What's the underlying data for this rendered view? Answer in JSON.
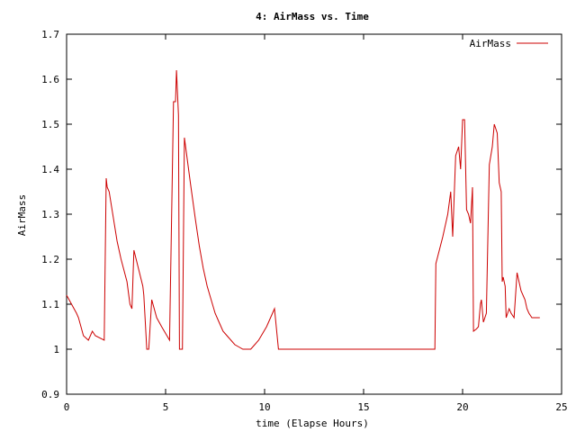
{
  "chart_data": {
    "type": "line",
    "title": "4: AirMass vs. Time",
    "xlabel": "time (Elapse Hours)",
    "ylabel": "AirMass",
    "xlim": [
      0,
      25
    ],
    "ylim": [
      0.9,
      1.7
    ],
    "xticks": [
      0,
      5,
      10,
      15,
      20,
      25
    ],
    "xtick_labels": [
      "0",
      "5",
      "10",
      "15",
      "20",
      "25"
    ],
    "yticks": [
      0.9,
      1.0,
      1.1,
      1.2,
      1.3,
      1.4,
      1.5,
      1.6,
      1.7
    ],
    "ytick_labels": [
      "0.9",
      "1",
      "1.1",
      "1.2",
      "1.3",
      "1.4",
      "1.5",
      "1.6",
      "1.7"
    ],
    "grid": false,
    "legend_position": "top-right",
    "line_color": "#cc0000",
    "series": [
      {
        "name": "AirMass",
        "color": "#cc0000",
        "x": [
          0,
          0.5,
          0.6,
          0.85,
          1.1,
          1.3,
          1.45,
          1.9,
          2.0,
          2.05,
          2.15,
          2.55,
          2.75,
          3.05,
          3.2,
          3.3,
          3.4,
          3.85,
          3.9,
          4.05,
          4.15,
          4.3,
          4.55,
          4.8,
          5.2,
          5.4,
          5.5,
          5.55,
          5.65,
          5.7,
          5.85,
          5.95,
          6.1,
          6.25,
          6.5,
          6.7,
          6.9,
          7.1,
          7.3,
          7.5,
          7.7,
          7.9,
          8.1,
          8.3,
          8.5,
          8.7,
          8.9,
          9.1,
          9.3,
          9.5,
          9.7,
          9.9,
          10.1,
          10.3,
          10.5,
          10.7,
          10.9,
          11.05,
          11.2,
          12.5,
          14,
          15.5,
          17,
          18.6,
          18.65,
          19.0,
          19.25,
          19.4,
          19.5,
          19.65,
          19.8,
          19.9,
          20.0,
          20.1,
          20.2,
          20.3,
          20.4,
          20.5,
          20.55,
          20.7,
          20.8,
          20.9,
          20.95,
          21.05,
          21.2,
          21.35,
          21.5,
          21.6,
          21.75,
          21.85,
          21.95,
          22.0,
          22.05,
          22.15,
          22.2,
          22.35,
          22.45,
          22.6,
          22.75,
          22.85,
          22.95,
          23.15,
          23.25,
          23.35,
          23.5,
          23.7,
          23.9
        ],
        "values": [
          1.12,
          1.08,
          1.07,
          1.03,
          1.02,
          1.04,
          1.03,
          1.02,
          1.38,
          1.36,
          1.35,
          1.24,
          1.2,
          1.15,
          1.1,
          1.09,
          1.22,
          1.14,
          1.12,
          1.0,
          1.0,
          1.11,
          1.07,
          1.05,
          1.02,
          1.55,
          1.55,
          1.62,
          1.52,
          1.0,
          1.0,
          1.47,
          1.42,
          1.37,
          1.29,
          1.23,
          1.18,
          1.14,
          1.11,
          1.08,
          1.06,
          1.04,
          1.03,
          1.02,
          1.01,
          1.005,
          1.0,
          1.0,
          1.0,
          1.01,
          1.02,
          1.035,
          1.05,
          1.07,
          1.09,
          1.0,
          1.0,
          1.0,
          1.0,
          1.0,
          1.0,
          1.0,
          1.0,
          1.0,
          1.19,
          1.25,
          1.3,
          1.35,
          1.25,
          1.43,
          1.45,
          1.4,
          1.51,
          1.51,
          1.31,
          1.3,
          1.28,
          1.36,
          1.04,
          1.045,
          1.05,
          1.1,
          1.11,
          1.06,
          1.08,
          1.41,
          1.45,
          1.5,
          1.48,
          1.37,
          1.35,
          1.15,
          1.16,
          1.14,
          1.07,
          1.09,
          1.08,
          1.07,
          1.17,
          1.15,
          1.13,
          1.11,
          1.09,
          1.08,
          1.07,
          1.07,
          1.07
        ]
      }
    ]
  }
}
